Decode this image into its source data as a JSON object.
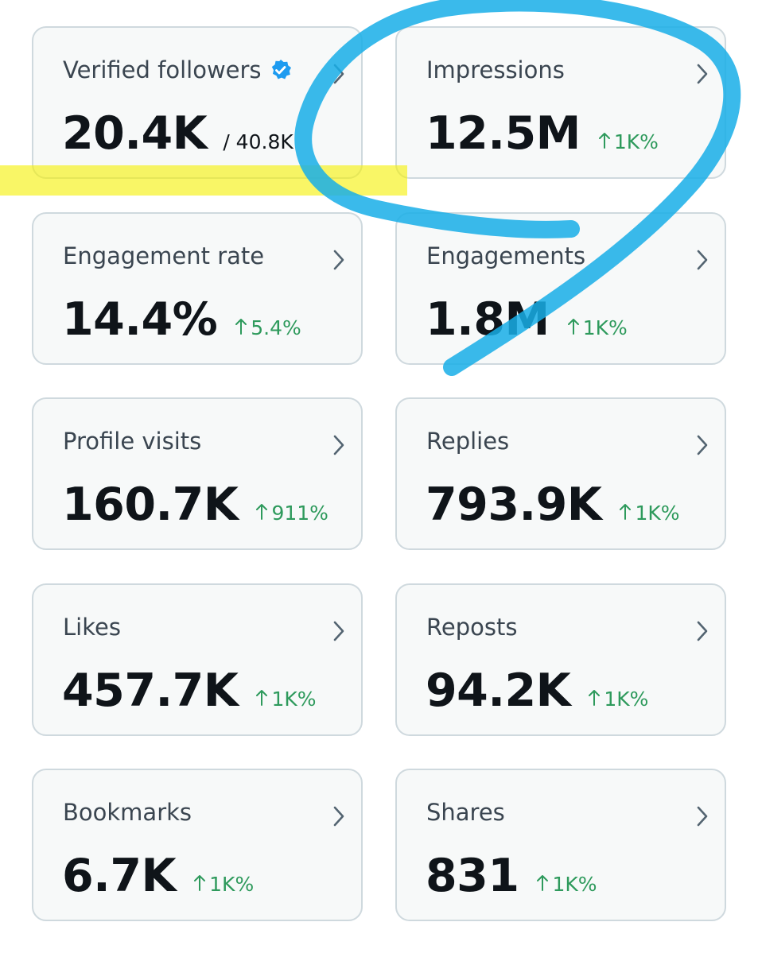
{
  "cards": [
    {
      "label": "Verified followers",
      "value": "20.4K",
      "total": "/ 40.8K"
    },
    {
      "label": "Impressions",
      "value": "12.5M",
      "change": "1K%"
    },
    {
      "label": "Engagement rate",
      "value": "14.4%",
      "change": "5.4%"
    },
    {
      "label": "Engagements",
      "value": "1.8M",
      "change": "1K%"
    },
    {
      "label": "Profile visits",
      "value": "160.7K",
      "change": "911%"
    },
    {
      "label": "Replies",
      "value": "793.9K",
      "change": "1K%"
    },
    {
      "label": "Likes",
      "value": "457.7K",
      "change": "1K%"
    },
    {
      "label": "Reposts",
      "value": "94.2K",
      "change": "1K%"
    },
    {
      "label": "Bookmarks",
      "value": "6.7K",
      "change": "1K%"
    },
    {
      "label": "Shares",
      "value": "831",
      "change": "1K%"
    }
  ]
}
